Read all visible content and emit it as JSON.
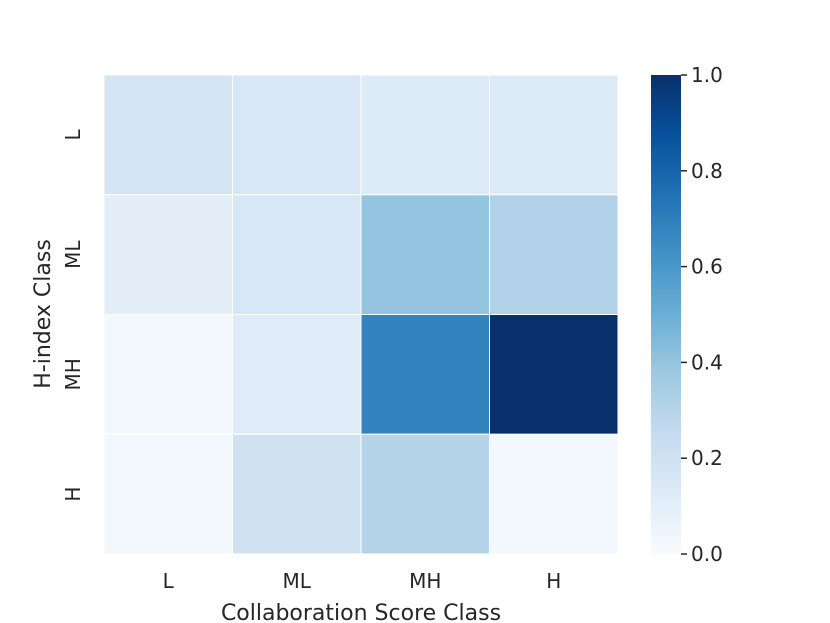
{
  "chart_data": {
    "type": "heatmap",
    "xlabel": "Collaboration Score Class",
    "ylabel": "H-index Class",
    "x_categories": [
      "L",
      "ML",
      "MH",
      "H"
    ],
    "y_categories": [
      "L",
      "ML",
      "MH",
      "H"
    ],
    "values": [
      [
        0.18,
        0.16,
        0.13,
        0.13
      ],
      [
        0.1,
        0.16,
        0.4,
        0.32
      ],
      [
        0.02,
        0.12,
        0.68,
        1.0
      ],
      [
        0.02,
        0.2,
        0.3,
        0.02
      ]
    ],
    "colorscale": "Blues",
    "vmin": 0.0,
    "vmax": 1.0,
    "colorbar_ticks": [
      "0.0",
      "0.2",
      "0.4",
      "0.6",
      "0.8",
      "1.0"
    ],
    "grid": false,
    "cell_border_color": "#ffffff"
  }
}
